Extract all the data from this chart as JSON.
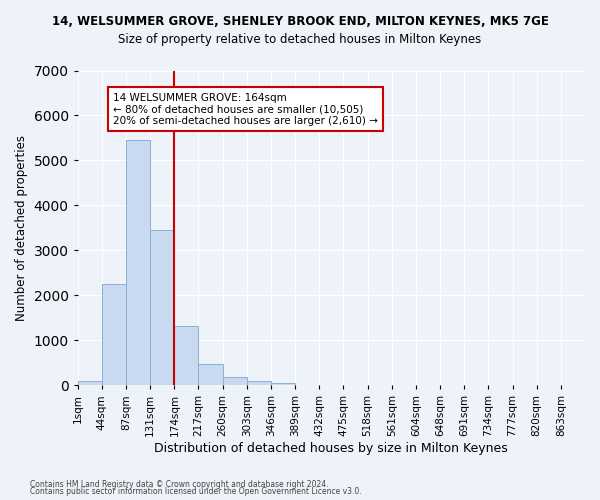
{
  "title_line1": "14, WELSUMMER GROVE, SHENLEY BROOK END, MILTON KEYNES, MK5 7GE",
  "title_line2": "Size of property relative to detached houses in Milton Keynes",
  "xlabel": "Distribution of detached houses by size in Milton Keynes",
  "ylabel": "Number of detached properties",
  "bin_labels": [
    "1sqm",
    "44sqm",
    "87sqm",
    "131sqm",
    "174sqm",
    "217sqm",
    "260sqm",
    "303sqm",
    "346sqm",
    "389sqm",
    "432sqm",
    "475sqm",
    "518sqm",
    "561sqm",
    "604sqm",
    "648sqm",
    "691sqm",
    "734sqm",
    "777sqm",
    "820sqm",
    "863sqm"
  ],
  "bar_values": [
    100,
    2260,
    5450,
    3450,
    1310,
    480,
    185,
    90,
    60,
    0,
    0,
    0,
    0,
    0,
    0,
    0,
    0,
    0,
    0,
    0
  ],
  "bar_color": "#c9d9f0",
  "bar_edgecolor": "#8ab0d8",
  "vline_color": "#cc0000",
  "annotation_text": "14 WELSUMMER GROVE: 164sqm\n← 80% of detached houses are smaller (10,505)\n20% of semi-detached houses are larger (2,610) →",
  "annotation_box_color": "#ffffff",
  "annotation_box_edgecolor": "#cc0000",
  "ylim": [
    0,
    7000
  ],
  "yticks": [
    0,
    1000,
    2000,
    3000,
    4000,
    5000,
    6000,
    7000
  ],
  "background_color": "#eef2f9",
  "grid_color": "#ffffff",
  "footer1": "Contains HM Land Registry data © Crown copyright and database right 2024.",
  "footer2": "Contains public sector information licensed under the Open Government Licence v3.0."
}
